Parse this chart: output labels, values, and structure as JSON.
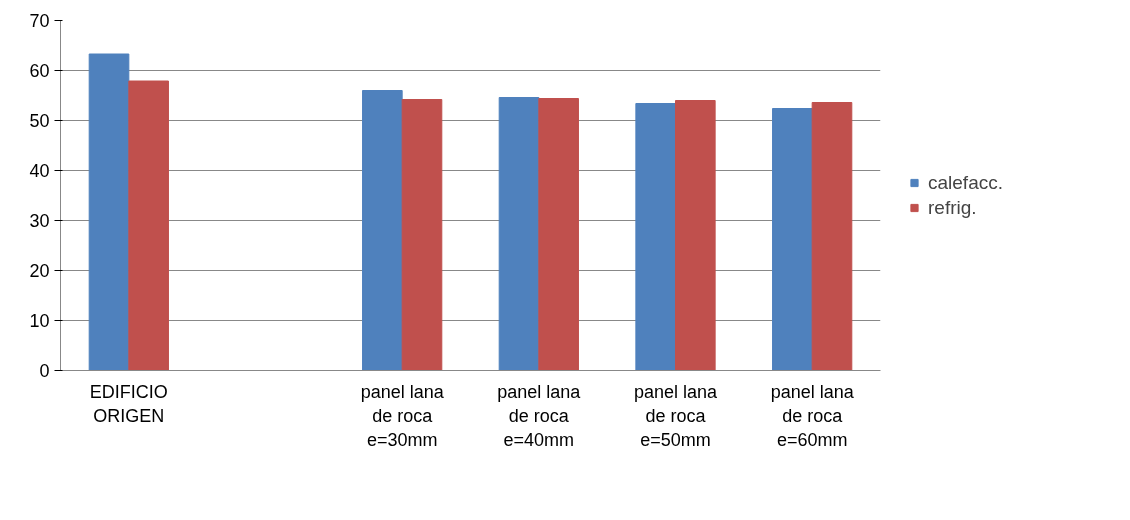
{
  "chart_data": {
    "type": "bar",
    "categories": [
      "EDIFICIO ORIGEN",
      null,
      "panel lana de roca e=30mm",
      "panel lana de roca e=40mm",
      "panel lana de roca e=50mm",
      "panel lana de roca e=60mm"
    ],
    "series": [
      {
        "name": "calefacc.",
        "color": "#4f81bd",
        "values": [
          63.3,
          null,
          56.0,
          54.6,
          53.4,
          52.4
        ]
      },
      {
        "name": "refrig.",
        "color": "#c0504d",
        "values": [
          57.9,
          null,
          54.2,
          54.4,
          54.0,
          53.6
        ]
      }
    ],
    "ylim": [
      0,
      70
    ],
    "yticks": [
      0,
      10,
      20,
      30,
      40,
      50,
      60,
      70
    ],
    "grid": "y",
    "legend": "right"
  }
}
